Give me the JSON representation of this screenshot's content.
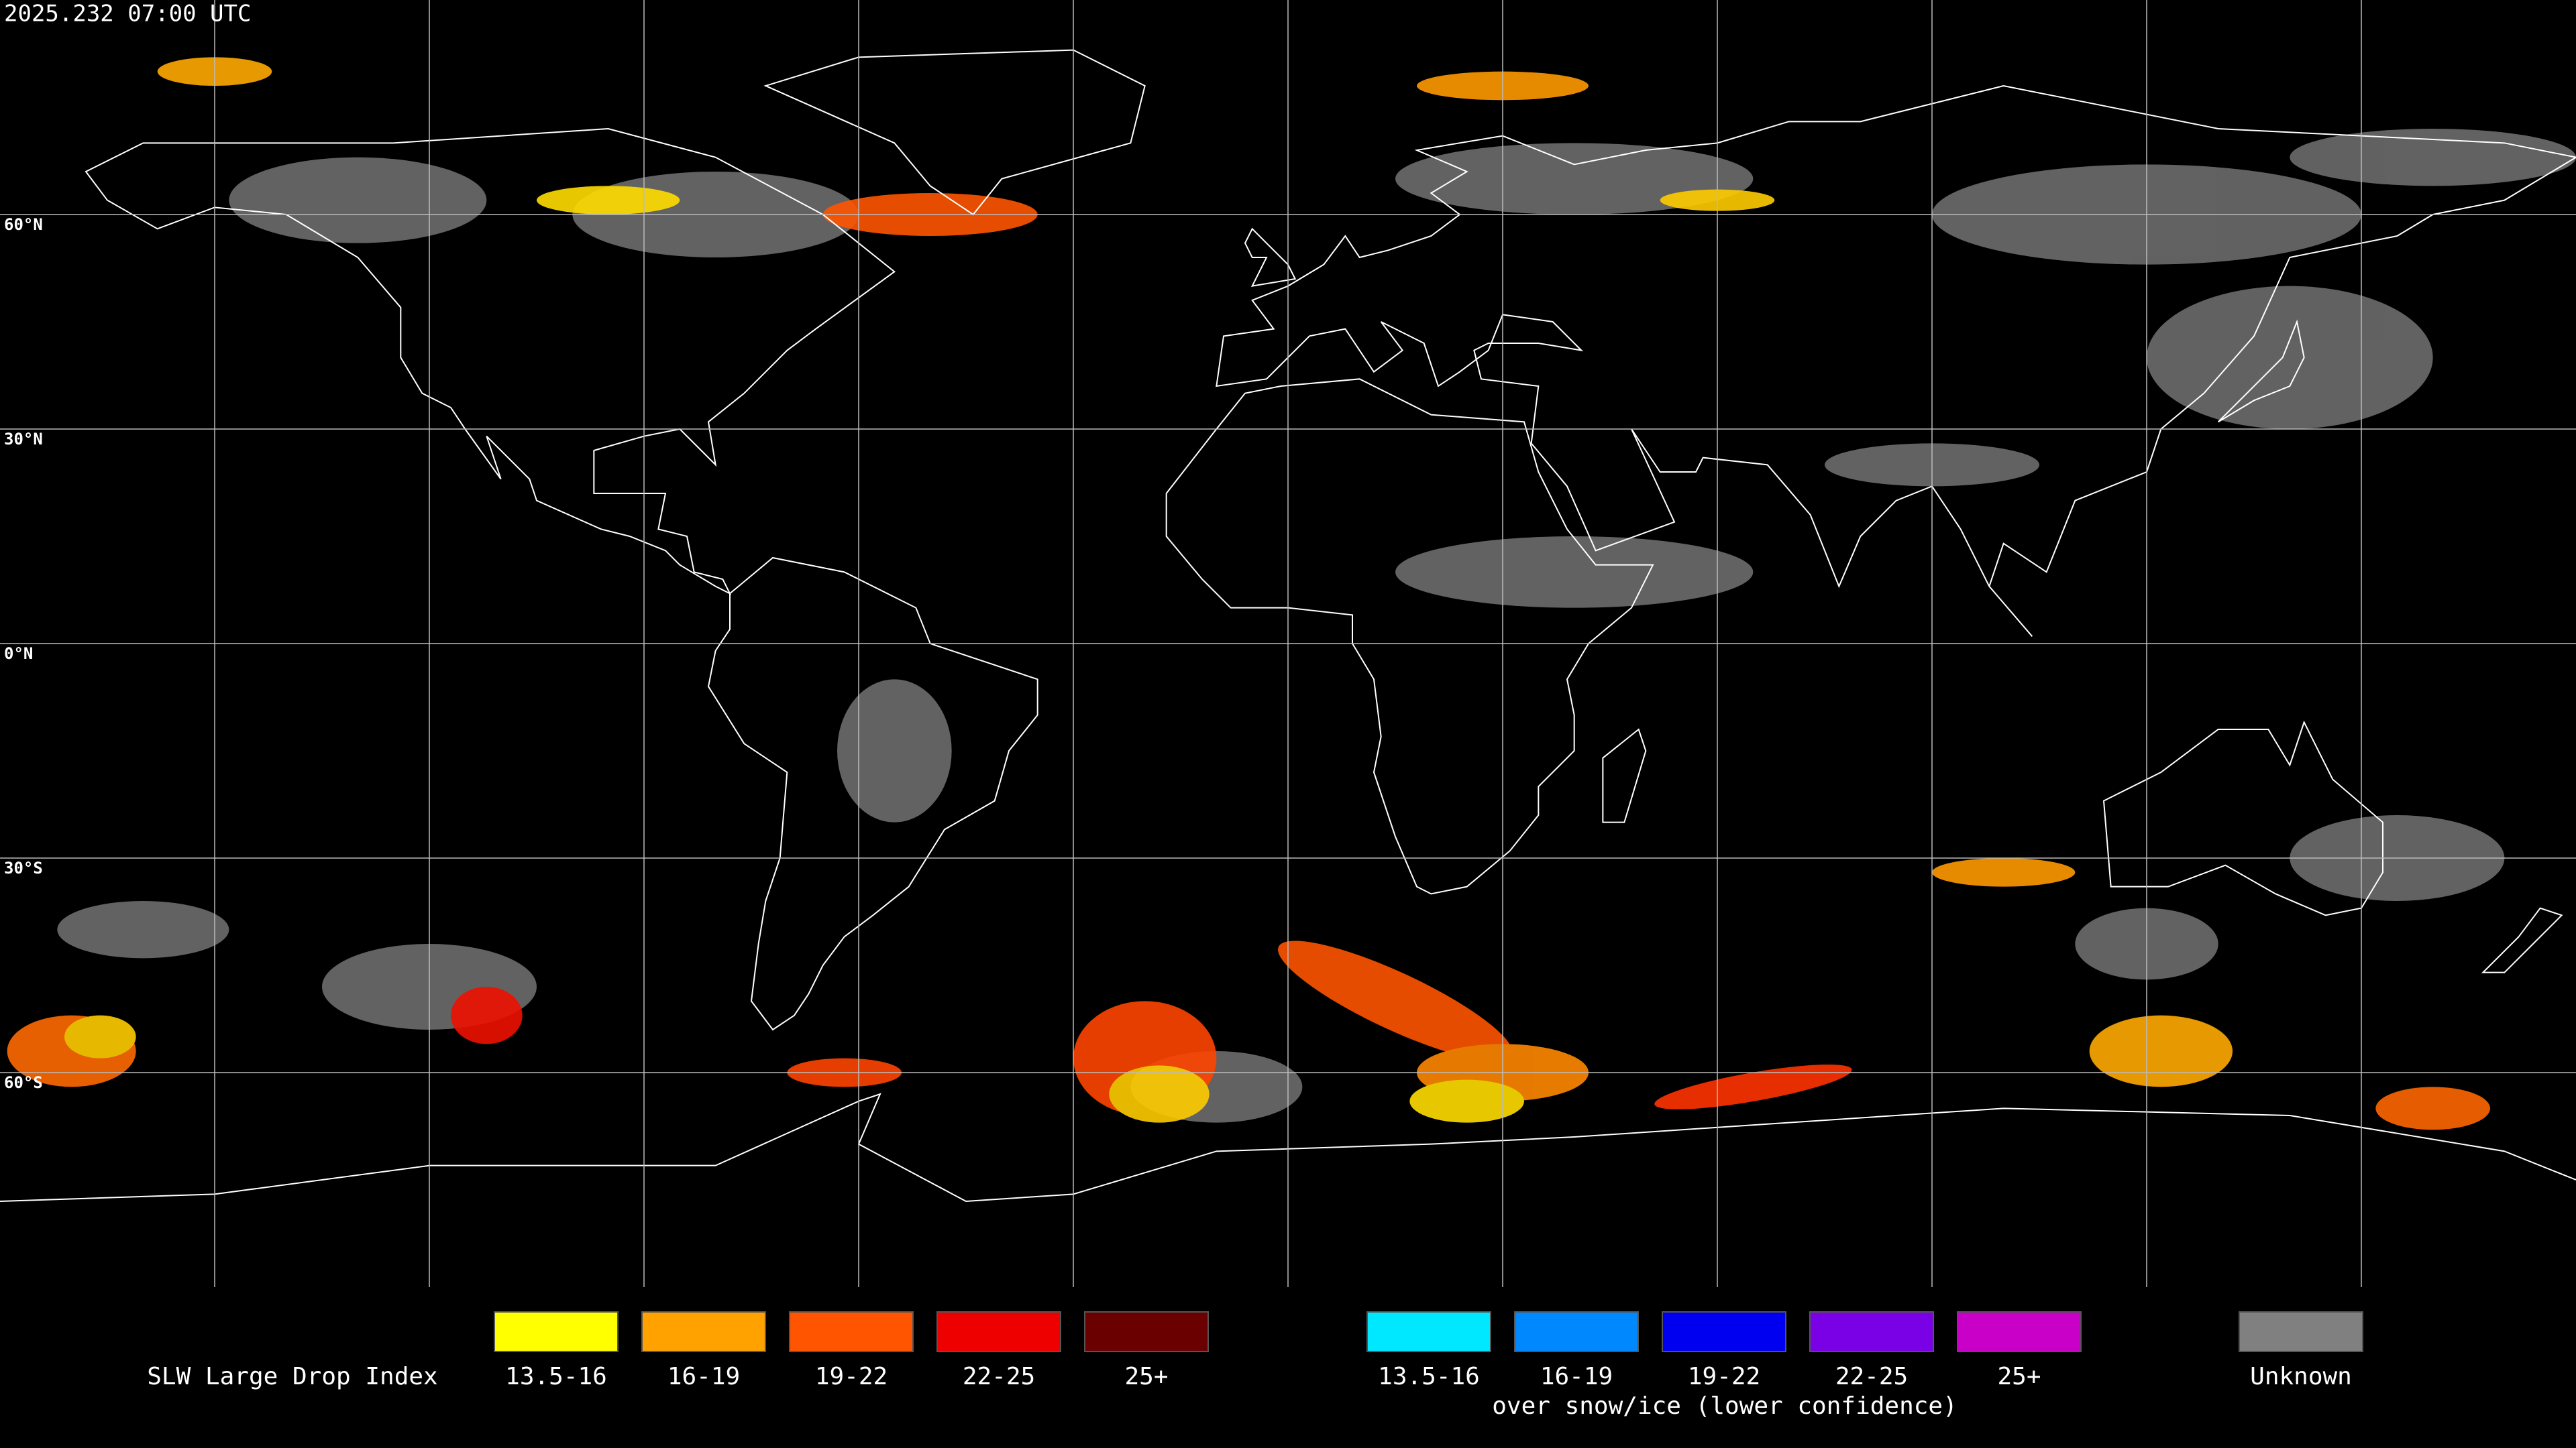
{
  "header": {
    "timestamp": "2025.232 07:00 UTC"
  },
  "map": {
    "latitude_labels": [
      "60°N",
      "30°N",
      "0°N",
      "30°S",
      "60°S"
    ]
  },
  "legend": {
    "title": "SLW Large Drop Index",
    "standard": [
      {
        "label": "13.5-16",
        "color": "#ffff00"
      },
      {
        "label": "16-19",
        "color": "#ffa200"
      },
      {
        "label": "19-22",
        "color": "#ff5500"
      },
      {
        "label": "22-25",
        "color": "#ee0000"
      },
      {
        "label": "25+",
        "color": "#6a0000"
      }
    ],
    "snow_ice": {
      "entries": [
        {
          "label": "13.5-16",
          "color": "#00e8ff"
        },
        {
          "label": "16-19",
          "color": "#0088ff"
        },
        {
          "label": "19-22",
          "color": "#0000f0"
        },
        {
          "label": "22-25",
          "color": "#7a00e6"
        },
        {
          "label": "25+",
          "color": "#c800c8"
        }
      ],
      "note": "over snow/ice (lower confidence)"
    },
    "unknown": {
      "label": "Unknown",
      "color": "#808080"
    }
  }
}
